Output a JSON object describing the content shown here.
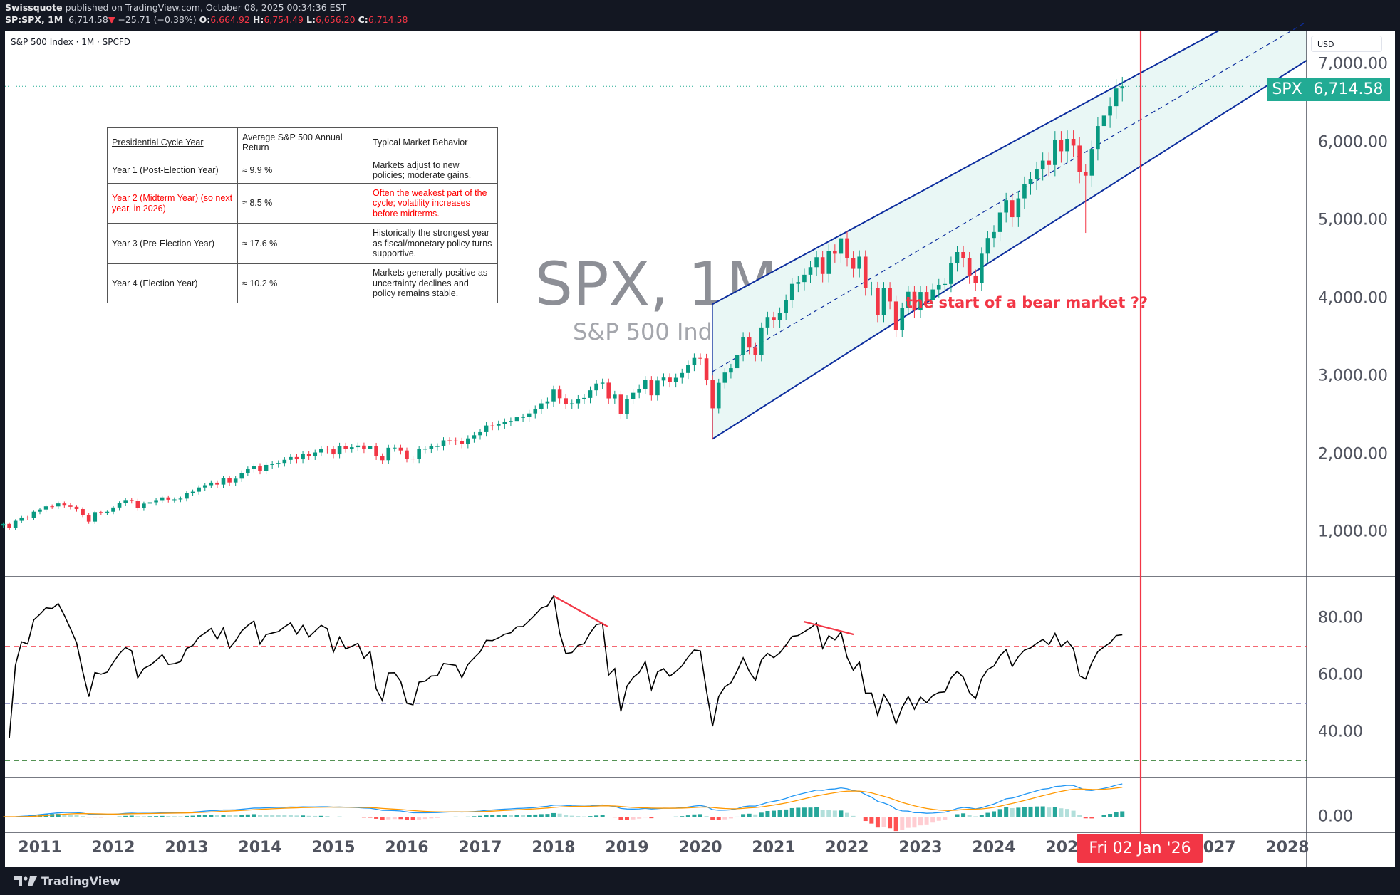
{
  "header": {
    "publisher": "Swissquote",
    "published_text": "published on TradingView.com, October 08, 2025 00:34:36 EST",
    "symbol": "SP:SPX, 1M",
    "last": "6,714.58",
    "change": "−25.71 (−0.38%)",
    "o_label": "O:",
    "open": "6,664.92",
    "h_label": "H:",
    "high": "6,754.49",
    "l_label": "L:",
    "low": "6,656.20",
    "c_label": "C:",
    "close": "6,714.58"
  },
  "legend": "S&P 500 Index · 1M · SPCFD",
  "watermark": {
    "symbol": "SPX, 1M",
    "name": "S&P 500 Index"
  },
  "price_axis": {
    "currency": "USD",
    "ticks": [
      "7,000.00",
      "6,000.00",
      "5,000.00",
      "4,000.00",
      "3,000.00",
      "2,000.00",
      "1,000.00"
    ],
    "tick_values": [
      7000,
      6000,
      5000,
      4000,
      3000,
      2000,
      1000
    ],
    "last_tag": {
      "symbol": "SPX",
      "value": "6,714.58",
      "color": "#22ab94"
    }
  },
  "rsi_axis": {
    "ticks": [
      "80.00",
      "60.00",
      "40.00"
    ],
    "tick_values": [
      80,
      60,
      40
    ],
    "levels": [
      70,
      50,
      30
    ]
  },
  "macd_axis": {
    "ticks": [
      "0.00"
    ]
  },
  "time_axis": {
    "years": [
      "2011",
      "2012",
      "2013",
      "2014",
      "2015",
      "2016",
      "2017",
      "2018",
      "2019",
      "2020",
      "2021",
      "2022",
      "2023",
      "2024",
      "2025",
      "2027",
      "2028"
    ],
    "year_values": [
      2011,
      2012,
      2013,
      2014,
      2015,
      2016,
      2017,
      2018,
      2019,
      2020,
      2021,
      2022,
      2023,
      2024,
      2025,
      2027,
      2028
    ],
    "cursor_label": "Fri 02 Jan '26"
  },
  "annotation": "the start of a bear market ??",
  "table": {
    "headers": [
      "Presidential Cycle Year",
      "Average S&P 500 Annual Return",
      "Typical Market Behavior"
    ],
    "rows": [
      {
        "year": "Year 1 (Post-Election Year)",
        "ret": "≈ 9.9 %",
        "behavior": "Markets adjust to new policies; moderate gains.",
        "highlight": false
      },
      {
        "year": "Year 2 (Midterm Year) (so next year, in 2026)",
        "ret": "≈ 8.5 %",
        "behavior": "Often the weakest part of the cycle; volatility increases before midterms.",
        "highlight": true
      },
      {
        "year": "Year 3 (Pre-Election Year)",
        "ret": "≈ 17.6 %",
        "behavior": "Historically the strongest year as fiscal/monetary policy turns supportive.",
        "highlight": false
      },
      {
        "year": "Year 4 (Election Year)",
        "ret": "≈ 10.2 %",
        "behavior": "Markets generally positive as uncertainty declines and policy remains stable.",
        "highlight": false
      }
    ]
  },
  "footer": {
    "brand": "TradingView"
  },
  "colors": {
    "up": "#089981",
    "down": "#f23645",
    "channel": "#0d2e9e",
    "channel_fill": "#e9f7f5",
    "cursor": "#f23645",
    "macd": "#2196f3",
    "signal": "#ff9800"
  },
  "chart_data": {
    "type": "candlestick",
    "interval": "1M",
    "start_month": "2010-07",
    "closes": [
      1102,
      1049,
      1141,
      1183,
      1181,
      1258,
      1286,
      1327,
      1326,
      1364,
      1345,
      1321,
      1292,
      1219,
      1131,
      1253,
      1247,
      1258,
      1312,
      1366,
      1408,
      1398,
      1310,
      1362,
      1379,
      1407,
      1441,
      1412,
      1416,
      1426,
      1498,
      1515,
      1569,
      1598,
      1631,
      1606,
      1686,
      1633,
      1682,
      1757,
      1806,
      1848,
      1783,
      1859,
      1872,
      1884,
      1924,
      1960,
      1931,
      2003,
      1972,
      2018,
      2068,
      2059,
      1995,
      2105,
      2068,
      2086,
      2107,
      2063,
      2104,
      1972,
      1920,
      2079,
      2080,
      2044,
      1940,
      1932,
      2060,
      2065,
      2097,
      2099,
      2174,
      2171,
      2168,
      2126,
      2199,
      2239,
      2279,
      2364,
      2363,
      2384,
      2412,
      2423,
      2470,
      2472,
      2519,
      2575,
      2648,
      2674,
      2824,
      2714,
      2641,
      2648,
      2705,
      2718,
      2816,
      2902,
      2914,
      2712,
      2760,
      2507,
      2704,
      2784,
      2834,
      2946,
      2752,
      2942,
      2980,
      2926,
      2977,
      3038,
      3141,
      3231,
      3226,
      2954,
      2585,
      2912,
      3044,
      3100,
      3271,
      3500,
      3363,
      3270,
      3622,
      3756,
      3714,
      3811,
      3973,
      4181,
      4204,
      4298,
      4395,
      4523,
      4308,
      4605,
      4567,
      4766,
      4516,
      4374,
      4530,
      4132,
      4132,
      3785,
      4130,
      3955,
      3586,
      3872,
      4080,
      3840,
      4077,
      3970,
      4109,
      4169,
      4180,
      4450,
      4589,
      4508,
      4288,
      4194,
      4568,
      4770,
      4846,
      5096,
      5254,
      5036,
      5278,
      5460,
      5522,
      5648,
      5762,
      5705,
      6032,
      5882,
      6041,
      5955,
      5612,
      5569,
      5912,
      6205,
      6339,
      6460,
      6688,
      6715
    ],
    "notable_lows": {
      "2020-03": 2192,
      "2025-04": 4835
    },
    "ylim": [
      0,
      7400
    ],
    "channel": {
      "upper": [
        [
          "2020-03",
          3920
        ],
        [
          "2025-10",
          6760
        ]
      ],
      "lower": [
        [
          "2020-03",
          2192
        ],
        [
          "2026-12",
          6240
        ]
      ]
    },
    "indicators": [
      "RSI 14",
      "MACD 12 26 9"
    ]
  }
}
